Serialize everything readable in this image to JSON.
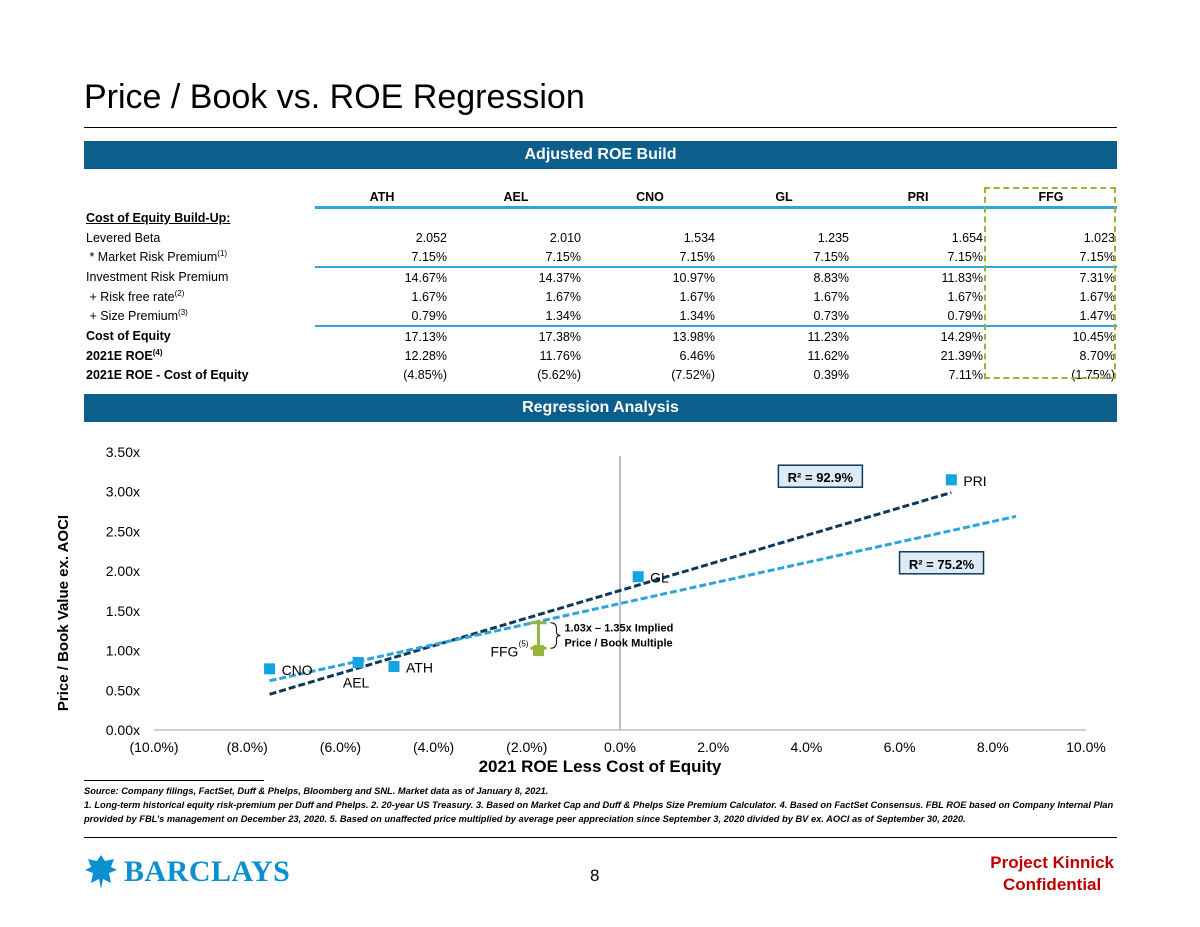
{
  "page_title": "Price / Book vs. ROE Regression",
  "section1_title": "Adjusted ROE Build",
  "section2_title": "Regression Analysis",
  "companies": [
    "ATH",
    "AEL",
    "CNO",
    "GL",
    "PRI",
    "FFG"
  ],
  "table": {
    "section_label": "Cost of Equity Build-Up:",
    "rows": [
      {
        "label": "Levered Beta",
        "sup": "",
        "values": [
          "2.052",
          "2.010",
          "1.534",
          "1.235",
          "1.654",
          "1.023"
        ]
      },
      {
        "label": " * Market Risk Premium",
        "sup": "(1)",
        "values": [
          "7.15%",
          "7.15%",
          "7.15%",
          "7.15%",
          "7.15%",
          "7.15%"
        ]
      },
      {
        "label": "Investment Risk Premium",
        "sup": "",
        "values": [
          "14.67%",
          "14.37%",
          "10.97%",
          "8.83%",
          "11.83%",
          "7.31%"
        ]
      },
      {
        "label": " + Risk free rate",
        "sup": "(2)",
        "values": [
          "1.67%",
          "1.67%",
          "1.67%",
          "1.67%",
          "1.67%",
          "1.67%"
        ]
      },
      {
        "label": " + Size Premium",
        "sup": "(3)",
        "values": [
          "0.79%",
          "1.34%",
          "1.34%",
          "0.73%",
          "0.79%",
          "1.47%"
        ]
      },
      {
        "label": "Cost of Equity",
        "sup": "",
        "values": [
          "17.13%",
          "17.38%",
          "13.98%",
          "11.23%",
          "14.29%",
          "10.45%"
        ]
      },
      {
        "label": "2021E ROE",
        "sup": "(4)",
        "values": [
          "12.28%",
          "11.76%",
          "6.46%",
          "11.62%",
          "21.39%",
          "8.70%"
        ]
      },
      {
        "label": "2021E ROE - Cost of Equity",
        "sup": "",
        "values": [
          "(4.85%)",
          "(5.62%)",
          "(7.52%)",
          "0.39%",
          "7.11%",
          "(1.75%)"
        ]
      }
    ]
  },
  "chart_data": {
    "type": "scatter",
    "xlabel": "2021 ROE Less Cost of Equity",
    "ylabel": "Price / Book Value ex. AOCI",
    "xlim": [
      -10,
      10
    ],
    "ylim": [
      0,
      3.5
    ],
    "x_ticks": [
      -10,
      -8,
      -6,
      -4,
      -2,
      0,
      2,
      4,
      6,
      8,
      10
    ],
    "x_tick_labels": [
      "(10.0%)",
      "(8.0%)",
      "(6.0%)",
      "(4.0%)",
      "(2.0%)",
      "0.0%",
      "2.0%",
      "4.0%",
      "6.0%",
      "8.0%",
      "10.0%"
    ],
    "y_ticks": [
      0,
      0.5,
      1.0,
      1.5,
      2.0,
      2.5,
      3.0,
      3.5
    ],
    "y_tick_labels": [
      "0.00x",
      "0.50x",
      "1.00x",
      "1.50x",
      "2.00x",
      "2.50x",
      "3.00x",
      "3.50x"
    ],
    "points": [
      {
        "label": "CNO",
        "x": -7.52,
        "y": 0.77,
        "color": "#12a5e1",
        "label_pos": "right"
      },
      {
        "label": "AEL",
        "x": -5.62,
        "y": 0.85,
        "color": "#12a5e1",
        "label_pos": "below"
      },
      {
        "label": "ATH",
        "x": -4.85,
        "y": 0.8,
        "color": "#12a5e1",
        "label_pos": "right"
      },
      {
        "label": "GL",
        "x": 0.39,
        "y": 1.93,
        "color": "#12a5e1",
        "label_pos": "right"
      },
      {
        "label": "PRI",
        "x": 7.11,
        "y": 3.15,
        "color": "#12a5e1",
        "label_pos": "right"
      },
      {
        "label": "FFG",
        "x": -1.75,
        "y": 1.0,
        "color": "#94b43c",
        "label_pos": "left",
        "sup": "(5)"
      }
    ],
    "series": [
      {
        "name": "R² = 92.9%",
        "color": "#0d3a5c",
        "x": [
          -7.52,
          7.11
        ],
        "y": [
          0.45,
          2.99
        ]
      },
      {
        "name": "R² = 75.2%",
        "color": "#2ea4dc",
        "x": [
          -7.52,
          8.5
        ],
        "y": [
          0.62,
          2.69
        ]
      }
    ],
    "r2_labels": [
      "R² = 92.9%",
      "R² = 75.2%"
    ],
    "implied_range": {
      "low": 1.03,
      "high": 1.35,
      "x": -1.75,
      "label_line1": "1.03x – 1.35x Implied",
      "label_line2": "Price / Book Multiple"
    }
  },
  "footnotes": {
    "source": "Source: Company filings, FactSet, Duff & Phelps, Bloomberg and SNL. Market data as of January 8, 2021.",
    "notes": "1. Long-term historical equity risk-premium per Duff and Phelps. 2. 20-year US Treasury. 3. Based on Market Cap and Duff & Phelps Size Premium Calculator. 4. Based on FactSet Consensus. FBL ROE based on Company Internal Plan provided by FBL’s management on December 23, 2020. 5. Based on unaffected price multiplied by average peer appreciation since September 3, 2020 divided by BV ex. AOCI as of September 30, 2020."
  },
  "logo_text": "BARCLAYS",
  "page_number": "8",
  "project_line1": "Project Kinnick",
  "project_line2": "Confidential"
}
